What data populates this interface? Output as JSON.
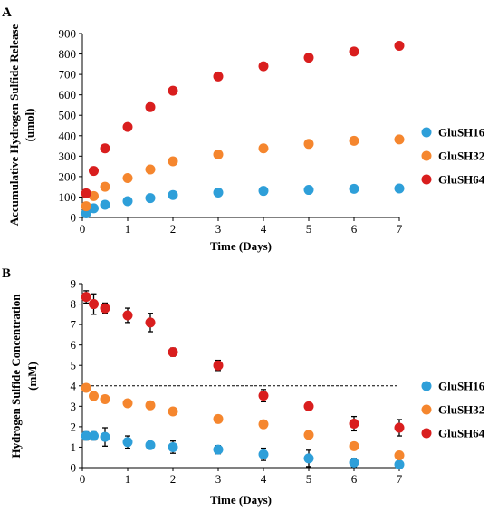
{
  "chart_data": [
    {
      "panel_label": "A",
      "type": "scatter",
      "xlabel": "Time (Days)",
      "ylabel_lines": [
        "Accumulative Hydrogen Sulfide Release",
        "(umol)"
      ],
      "xlim": [
        0,
        7
      ],
      "ylim": [
        0,
        900
      ],
      "xticks": [
        0,
        1,
        2,
        3,
        4,
        5,
        6,
        7
      ],
      "yticks": [
        0,
        100,
        200,
        300,
        400,
        500,
        600,
        700,
        800,
        900
      ],
      "grid": false,
      "legend_position": "right",
      "x": [
        0.083,
        0.25,
        0.5,
        1,
        1.5,
        2,
        3,
        4,
        5,
        6,
        7
      ],
      "series": [
        {
          "name": "GluSH16",
          "color": "#2e9fd9",
          "values": [
            20,
            45,
            62,
            80,
            95,
            110,
            122,
            130,
            135,
            140,
            142
          ]
        },
        {
          "name": "GluSH32",
          "color": "#f5862e",
          "values": [
            55,
            105,
            150,
            193,
            235,
            275,
            308,
            338,
            360,
            375,
            382
          ]
        },
        {
          "name": "GluSH64",
          "color": "#d91e1e",
          "values": [
            118,
            228,
            338,
            443,
            540,
            620,
            690,
            740,
            782,
            812,
            840
          ]
        }
      ]
    },
    {
      "panel_label": "B",
      "type": "scatter",
      "xlabel": "Time (Days)",
      "ylabel_lines": [
        "Hydrogen Sulfide Concentration",
        "(mM)"
      ],
      "xlim": [
        0,
        7
      ],
      "ylim": [
        0,
        9
      ],
      "xticks": [
        0,
        1,
        2,
        3,
        4,
        5,
        6,
        7
      ],
      "yticks": [
        0,
        1,
        2,
        3,
        4,
        5,
        6,
        7,
        8,
        9
      ],
      "grid": false,
      "legend_position": "right",
      "reference_line": {
        "y": 4,
        "style": "dashed",
        "color": "#000000"
      },
      "x": [
        0.083,
        0.25,
        0.5,
        1,
        1.5,
        2,
        3,
        4,
        5,
        6,
        7
      ],
      "series": [
        {
          "name": "GluSH16",
          "color": "#2e9fd9",
          "values": [
            1.55,
            1.55,
            1.5,
            1.25,
            1.1,
            1.0,
            0.88,
            0.65,
            0.45,
            0.25,
            0.15
          ],
          "errors": [
            0.2,
            0.2,
            0.45,
            0.3,
            0.1,
            0.3,
            0.2,
            0.3,
            0.4,
            0.2,
            0.1
          ]
        },
        {
          "name": "GluSH32",
          "color": "#f5862e",
          "values": [
            3.9,
            3.5,
            3.35,
            3.15,
            3.05,
            2.75,
            2.38,
            2.12,
            1.6,
            1.05,
            0.6
          ]
        },
        {
          "name": "GluSH64",
          "color": "#d91e1e",
          "values": [
            8.35,
            8.0,
            7.8,
            7.45,
            7.1,
            5.65,
            5.0,
            3.52,
            3.0,
            2.15,
            1.95
          ],
          "errors": [
            0.3,
            0.5,
            0.25,
            0.35,
            0.45,
            0.2,
            0.25,
            0.3,
            0.1,
            0.35,
            0.4
          ]
        }
      ]
    }
  ]
}
